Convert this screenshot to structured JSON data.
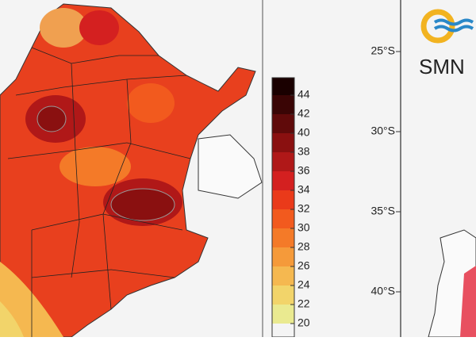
{
  "colorbar": {
    "ticks": [
      44,
      42,
      40,
      38,
      36,
      34,
      32,
      30,
      28,
      26,
      24,
      22,
      20
    ],
    "colors": [
      "#1a0000",
      "#3a0505",
      "#600a0a",
      "#8a1010",
      "#b01818",
      "#d42020",
      "#ea3a1a",
      "#f25a1e",
      "#f47a28",
      "#f59a3a",
      "#f5b850",
      "#f2d46a",
      "#eaea90"
    ]
  },
  "right_map": {
    "logo": "SMN",
    "lat_labels": [
      "25°S",
      "30°S",
      "35°S",
      "40°S"
    ]
  }
}
